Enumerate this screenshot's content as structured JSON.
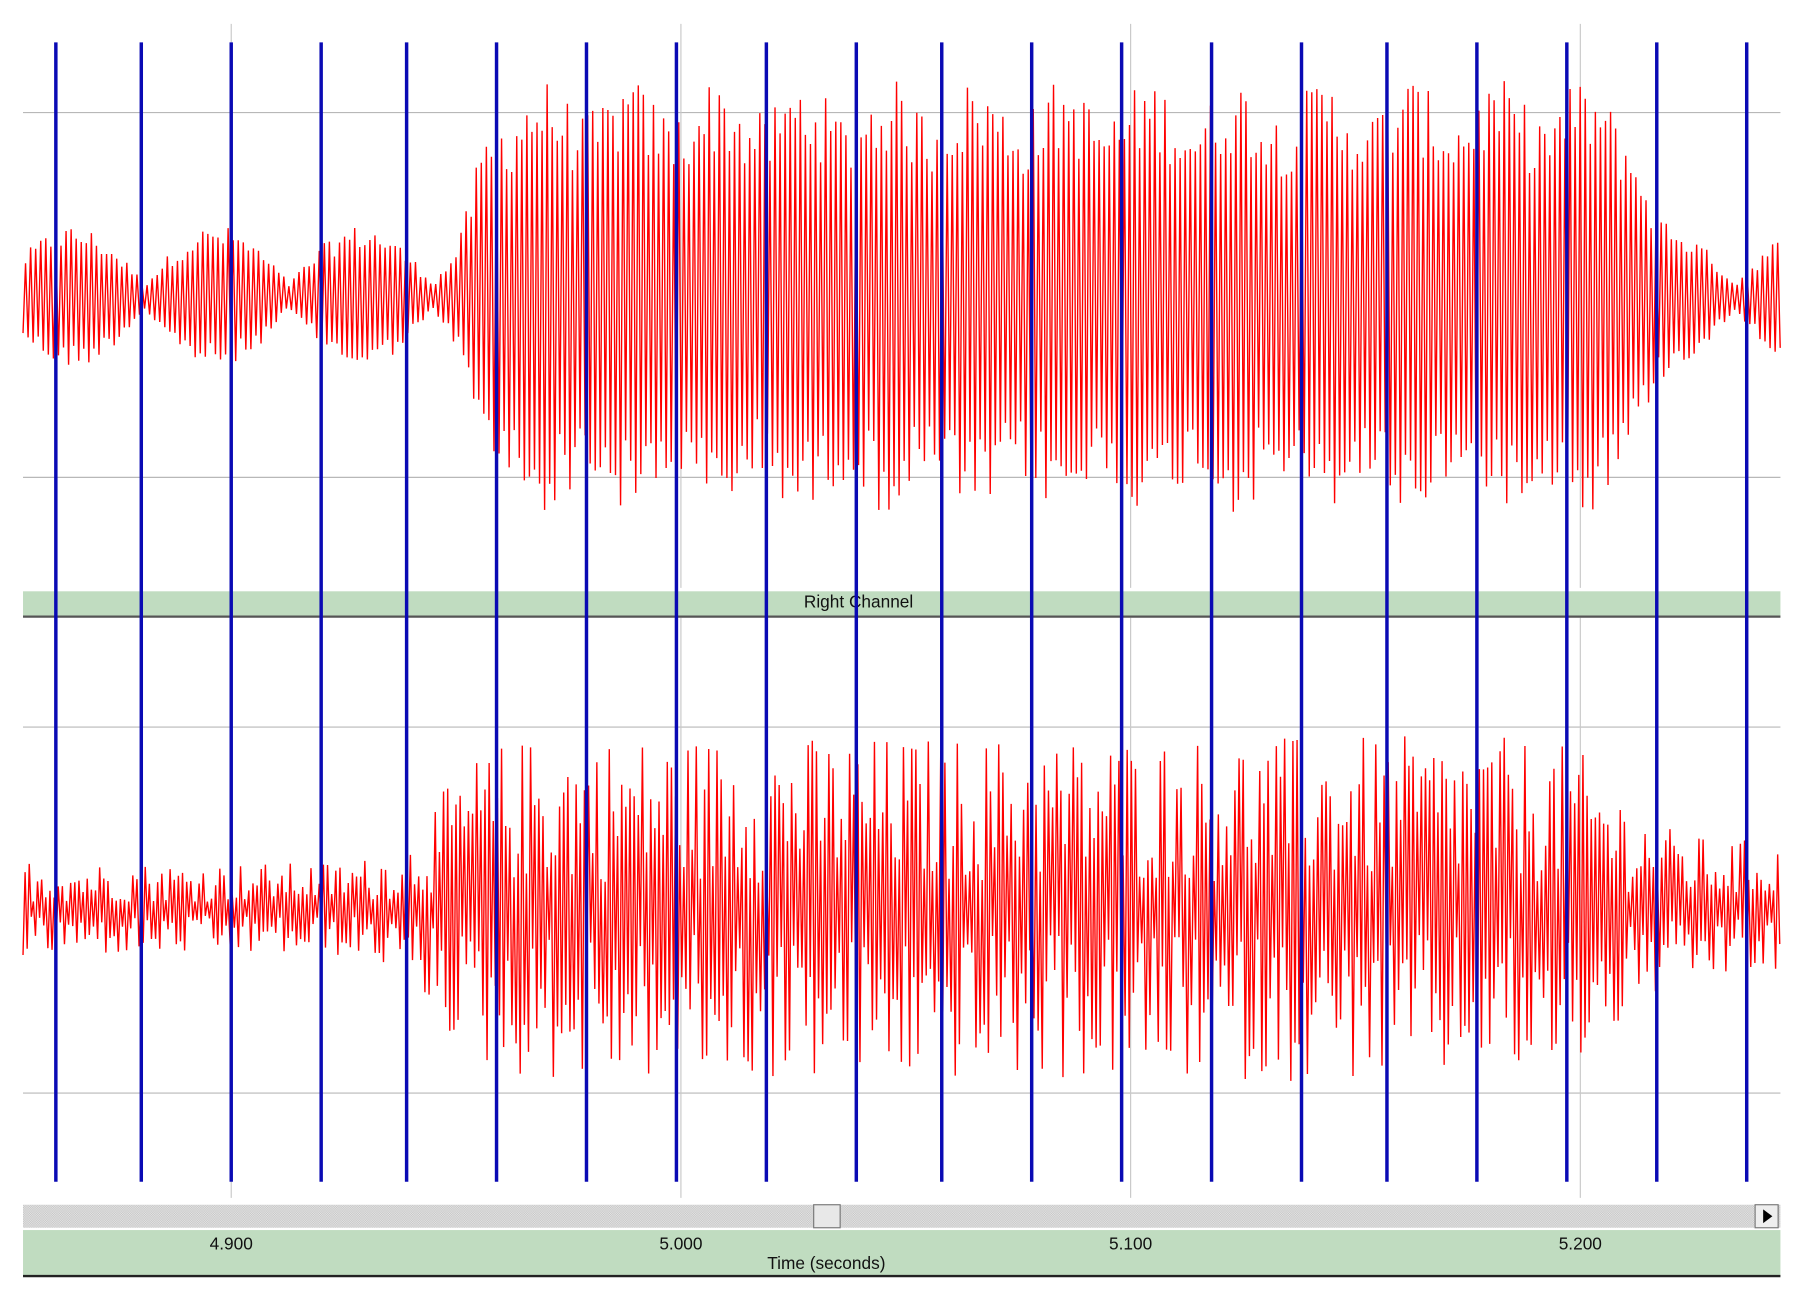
{
  "channel_label": "Right Channel",
  "time_axis": {
    "label": "Time (seconds)",
    "range": [
      4.8537,
      5.2445
    ],
    "ticks": [
      {
        "value": 4.9,
        "label": "4.900"
      },
      {
        "value": 5.0,
        "label": "5.000"
      },
      {
        "value": 5.1,
        "label": "5.100"
      },
      {
        "value": 5.2,
        "label": "5.200"
      }
    ]
  },
  "markers": [
    4.861,
    4.88,
    4.9,
    4.92,
    4.939,
    4.959,
    4.979,
    4.999,
    5.019,
    5.039,
    5.058,
    5.078,
    5.098,
    5.118,
    5.138,
    5.157,
    5.177,
    5.197,
    5.217,
    5.237
  ]
}
